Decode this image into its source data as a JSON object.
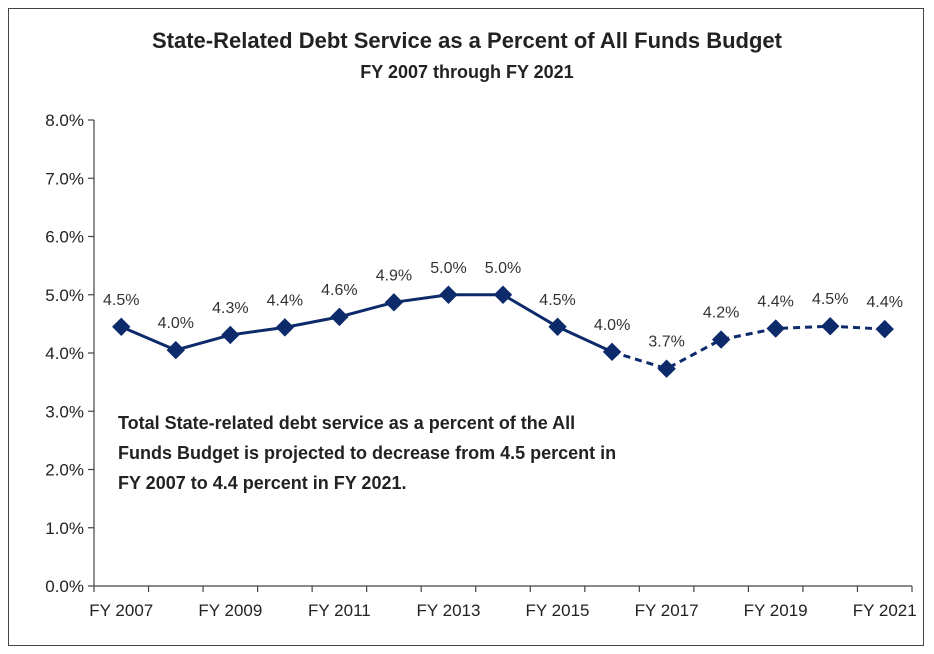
{
  "chart_data": {
    "type": "line",
    "title": "State-Related Debt Service as a Percent of All Funds Budget",
    "subtitle": "FY 2007 through FY 2021",
    "x": [
      "FY 2007",
      "FY 2008",
      "FY 2009",
      "FY 2010",
      "FY 2011",
      "FY 2012",
      "FY 2013",
      "FY 2014",
      "FY 2015",
      "FY 2016",
      "FY 2017",
      "FY 2018",
      "FY 2019",
      "FY 2020",
      "FY 2021"
    ],
    "x_tick_labels": [
      "FY 2007",
      "FY 2009",
      "FY 2011",
      "FY 2013",
      "FY 2015",
      "FY 2017",
      "FY 2019",
      "FY 2021"
    ],
    "y_tick_labels": [
      "0.0%",
      "1.0%",
      "2.0%",
      "3.0%",
      "4.0%",
      "5.0%",
      "6.0%",
      "7.0%",
      "8.0%"
    ],
    "ylim": [
      0,
      8
    ],
    "series": [
      {
        "values": [
          4.45,
          4.05,
          4.31,
          4.44,
          4.62,
          4.87,
          5.0,
          5.0,
          4.45,
          4.02,
          3.73,
          4.23,
          4.42,
          4.46,
          4.41
        ],
        "data_labels": [
          "4.5%",
          "4.0%",
          "4.3%",
          "4.4%",
          "4.6%",
          "4.9%",
          "5.0%",
          "5.0%",
          "4.5%",
          "4.0%",
          "3.7%",
          "4.2%",
          "4.4%",
          "4.5%",
          "4.4%"
        ],
        "color": "#0d2a6b",
        "actual_through_index": 9,
        "projected_line_style": "dashed"
      }
    ],
    "grid": false,
    "legend": "none",
    "annotation": "Total State-related debt service as a percent of the All Funds Budget is projected to decrease from 4.5 percent in FY 2007 to 4.4 percent in FY 2021."
  }
}
